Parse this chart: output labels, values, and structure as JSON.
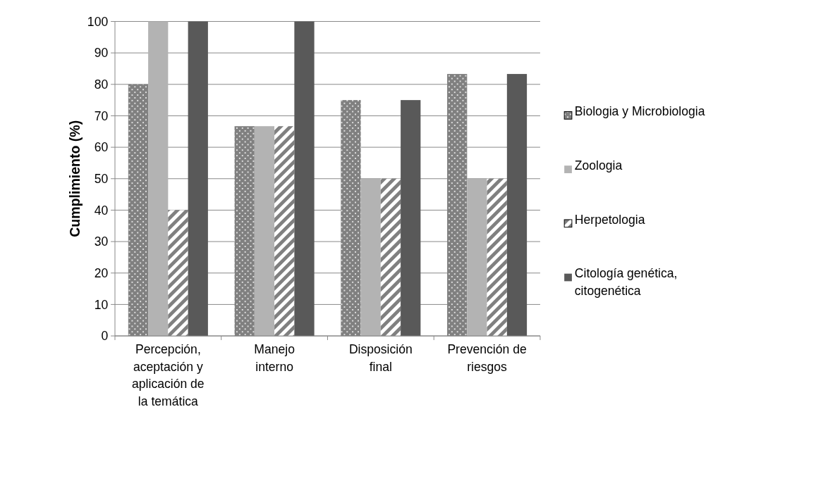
{
  "chart_data": {
    "type": "bar",
    "ylabel": "Cumplimiento (%)",
    "categories": [
      "Percepción, aceptación y aplicación de la temática",
      "Manejo interno",
      "Disposición final",
      "Prevención de riesgos"
    ],
    "series": [
      {
        "name": "Biologia y Microbiologia",
        "color": "#808080",
        "values": [
          80,
          66.7,
          75,
          83.3
        ]
      },
      {
        "name": "Zoologia",
        "color": "#b3b3b3",
        "values": [
          100,
          66.7,
          50,
          50
        ]
      },
      {
        "name": "Herpetologia",
        "color": "#808080",
        "values": [
          40,
          66.7,
          50,
          50
        ]
      },
      {
        "name": "Citología genética, citogenética",
        "color": "#595959",
        "values": [
          100,
          100,
          75,
          83.3
        ]
      }
    ],
    "ylim": [
      0,
      100
    ],
    "yticks": [
      0,
      10,
      20,
      30,
      40,
      50,
      60,
      70,
      80,
      90,
      100
    ],
    "grid": "y",
    "legend": "right"
  }
}
